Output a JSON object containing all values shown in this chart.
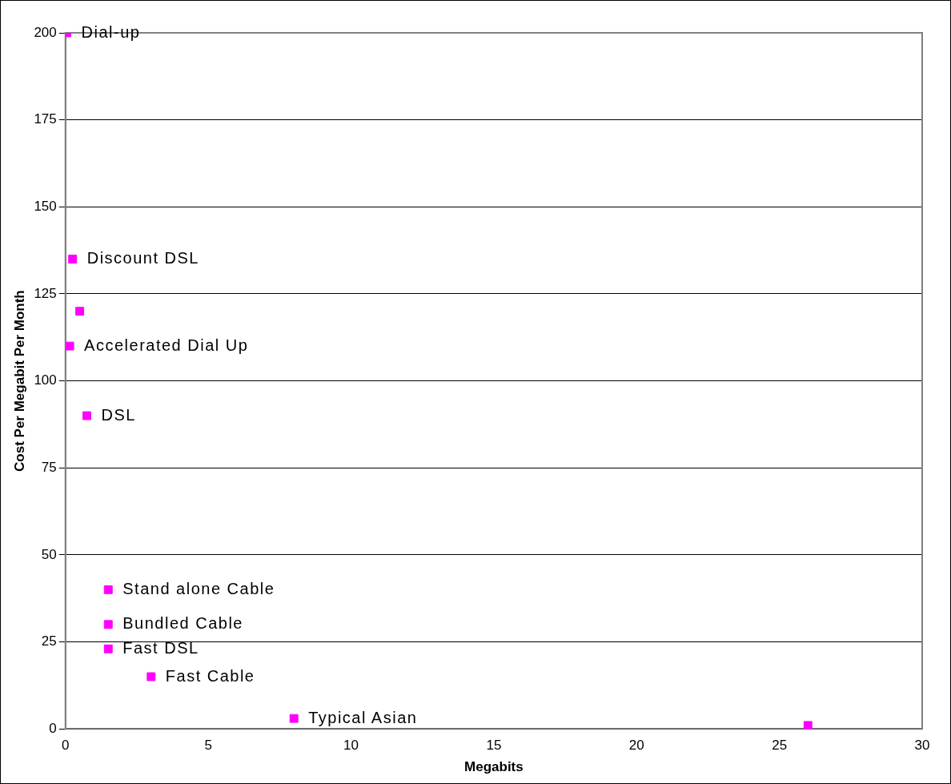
{
  "chart_data": {
    "type": "scatter",
    "xlabel": "Megabits",
    "ylabel": "Cost Per Megabit Per Month",
    "x": [
      0.05,
      0.25,
      0.5,
      0.15,
      0.75,
      1.5,
      1.5,
      1.5,
      3,
      8,
      26
    ],
    "series": [
      {
        "color": "#ff00ff",
        "values": [
          200,
          135,
          120,
          110,
          90,
          40,
          30,
          23,
          15,
          3,
          1
        ]
      }
    ],
    "marker": "square",
    "grid": "y",
    "legend": false,
    "xlim": [
      0,
      30
    ],
    "xticks": [
      0,
      5,
      10,
      15,
      20,
      25,
      30
    ],
    "ylim": [
      0,
      200
    ],
    "yticks": [
      0,
      25,
      50,
      75,
      100,
      125,
      150,
      175,
      200
    ],
    "annotations": [
      {
        "text": "Dial-up",
        "x": 0.05,
        "y": 200
      },
      {
        "text": "Discount DSL",
        "x": 0.25,
        "y": 135
      },
      {
        "text": "Accelerated Dial Up",
        "x": 0.15,
        "y": 110
      },
      {
        "text": "DSL",
        "x": 0.75,
        "y": 90
      },
      {
        "text": "Stand alone Cable",
        "x": 1.5,
        "y": 40
      },
      {
        "text": "Bundled Cable",
        "x": 1.5,
        "y": 30
      },
      {
        "text": "Fast DSL",
        "x": 1.5,
        "y": 23
      },
      {
        "text": "Fast Cable",
        "x": 3,
        "y": 15
      },
      {
        "text": "Typical Asian",
        "x": 8,
        "y": 3
      }
    ]
  }
}
